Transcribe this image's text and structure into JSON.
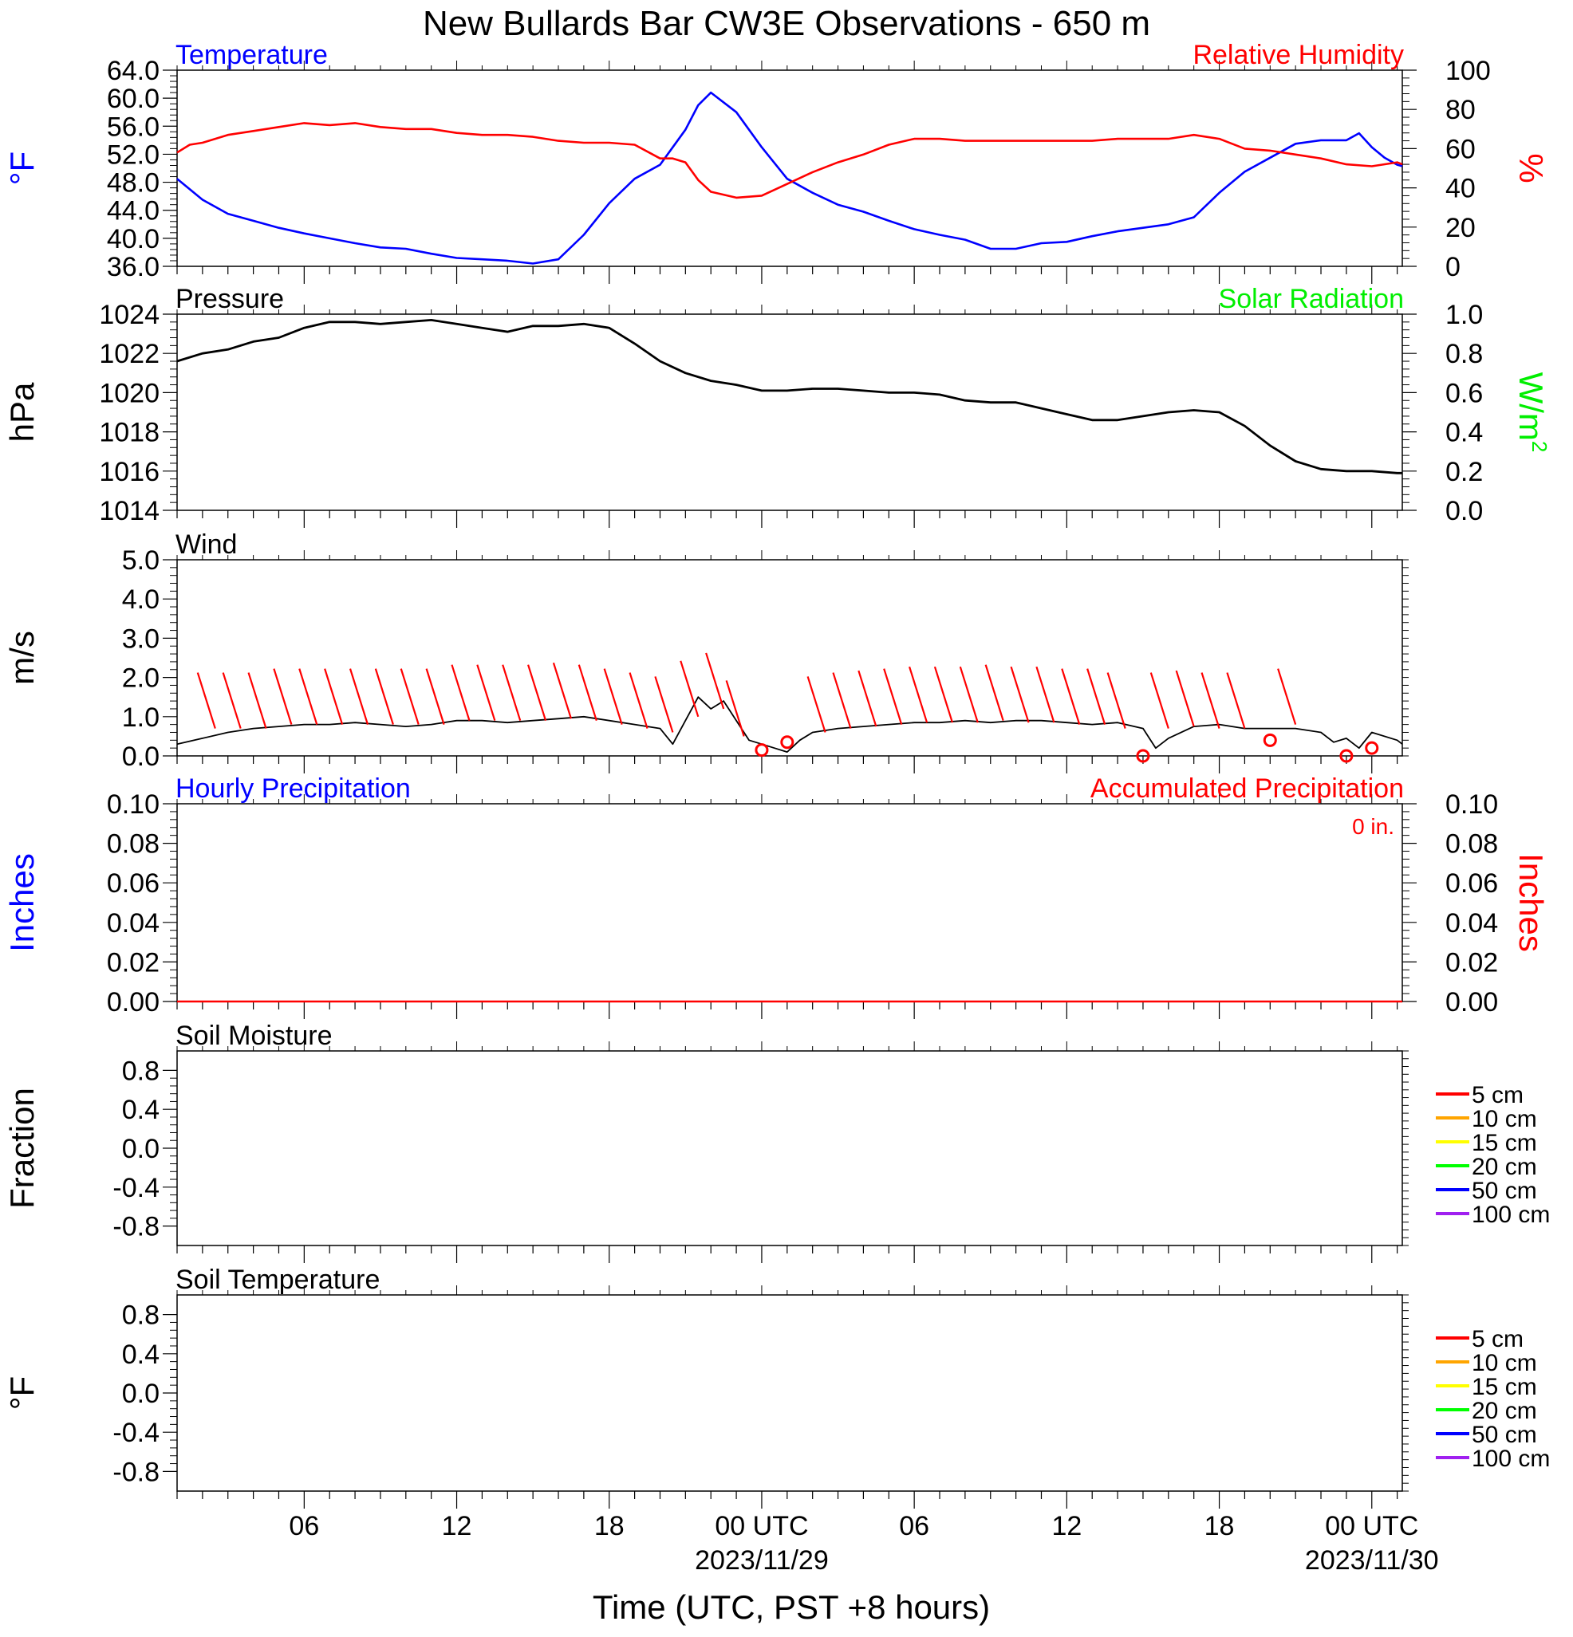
{
  "title": "New Bullards Bar CW3E Observations - 650 m",
  "colors": {
    "temperature": "#0000ff",
    "humidity": "#ff0000",
    "pressure": "#000000",
    "solar": "#00ee00",
    "wind": "#000000",
    "barb": "#ff0000",
    "hourly_precip": "#0000ff",
    "accum_precip": "#ff0000"
  },
  "x_axis": {
    "title": "Time (UTC, PST +8 hours)",
    "range_hours": [
      0,
      48.2
    ],
    "major_ticks": [
      {
        "hour": 5,
        "label": "06",
        "date": ""
      },
      {
        "hour": 11,
        "label": "12",
        "date": ""
      },
      {
        "hour": 17,
        "label": "18",
        "date": ""
      },
      {
        "hour": 23,
        "label": "00 UTC",
        "date": "2023/11/29"
      },
      {
        "hour": 29,
        "label": "06",
        "date": ""
      },
      {
        "hour": 35,
        "label": "12",
        "date": ""
      },
      {
        "hour": 41,
        "label": "18",
        "date": ""
      },
      {
        "hour": 47,
        "label": "00 UTC",
        "date": "2023/11/30"
      }
    ]
  },
  "chart_data": [
    {
      "type": "line",
      "panel": "temperature-humidity",
      "left_title": "Temperature",
      "right_title": "Relative Humidity",
      "ylabel_left": "°F",
      "ylabel_right": "%",
      "ylim_left": [
        36,
        64
      ],
      "ylim_right": [
        0,
        100
      ],
      "yticks_left": [
        "36.0",
        "40.0",
        "44.0",
        "48.0",
        "52.0",
        "56.0",
        "60.0",
        "64.0"
      ],
      "yticks_right": [
        "0",
        "20",
        "40",
        "60",
        "80",
        "100"
      ],
      "series": [
        {
          "key": "temperature",
          "axis": "left",
          "x": [
            0,
            1,
            2,
            3,
            4,
            5,
            6,
            7,
            8,
            9,
            10,
            11,
            12,
            13,
            14,
            15,
            16,
            17,
            18,
            19,
            20,
            20.5,
            21,
            22,
            23,
            24,
            25,
            26,
            27,
            28,
            29,
            30,
            31,
            32,
            33,
            34,
            35,
            36,
            37,
            38,
            39,
            40,
            41,
            42,
            43,
            44,
            45,
            46,
            46.5,
            47,
            47.5,
            48,
            48.2
          ],
          "y": [
            48.5,
            45.5,
            43.5,
            42.5,
            41.5,
            40.7,
            40.0,
            39.3,
            38.7,
            38.5,
            37.8,
            37.2,
            37.0,
            36.8,
            36.4,
            37.0,
            40.5,
            45.0,
            48.5,
            50.5,
            55.5,
            59.0,
            60.8,
            58.0,
            53.0,
            48.5,
            46.5,
            44.8,
            43.8,
            42.5,
            41.3,
            40.5,
            39.8,
            38.5,
            38.5,
            39.3,
            39.5,
            40.3,
            41.0,
            41.5,
            42.0,
            43.0,
            46.5,
            49.5,
            51.5,
            53.5,
            54.0,
            54.0,
            55.0,
            53.0,
            51.5,
            50.5,
            50.3
          ]
        },
        {
          "key": "humidity",
          "axis": "right",
          "x": [
            0,
            0.5,
            1,
            2,
            3,
            4,
            5,
            6,
            7,
            8,
            9,
            10,
            11,
            12,
            13,
            14,
            15,
            16,
            17,
            18,
            19,
            19.5,
            20,
            20.5,
            21,
            22,
            23,
            24,
            25,
            26,
            27,
            28,
            29,
            30,
            31,
            32,
            33,
            34,
            35,
            36,
            37,
            38,
            39,
            40,
            41,
            42,
            43,
            44,
            45,
            46,
            47,
            48,
            48.2
          ],
          "y": [
            58,
            62,
            63,
            67,
            69,
            71,
            73,
            72,
            73,
            71,
            70,
            70,
            68,
            67,
            67,
            66,
            64,
            63,
            63,
            62,
            55,
            55,
            53,
            44,
            38,
            35,
            36,
            42,
            48,
            53,
            57,
            62,
            65,
            65,
            64,
            64,
            64,
            64,
            64,
            64,
            65,
            65,
            65,
            67,
            65,
            60,
            59,
            57,
            55,
            52,
            51,
            53,
            52
          ]
        }
      ]
    },
    {
      "type": "line",
      "panel": "pressure-solar",
      "left_title": "Pressure",
      "right_title": "Solar Radiation",
      "ylabel_left": "hPa",
      "ylabel_right": "W/m",
      "ylabel_right_sup": "2",
      "ylim_left": [
        1014,
        1024
      ],
      "ylim_right": [
        0,
        1.0
      ],
      "yticks_left": [
        "1014",
        "1016",
        "1018",
        "1020",
        "1022",
        "1024"
      ],
      "yticks_right": [
        "0.0",
        "0.2",
        "0.4",
        "0.6",
        "0.8",
        "1.0"
      ],
      "series": [
        {
          "key": "pressure",
          "axis": "left",
          "x": [
            0,
            1,
            2,
            3,
            4,
            5,
            6,
            7,
            8,
            9,
            10,
            11,
            12,
            13,
            14,
            15,
            16,
            17,
            18,
            19,
            20,
            21,
            22,
            23,
            24,
            25,
            26,
            27,
            28,
            29,
            30,
            31,
            32,
            33,
            34,
            35,
            36,
            37,
            38,
            39,
            40,
            41,
            42,
            43,
            44,
            45,
            46,
            47,
            48,
            48.2
          ],
          "y": [
            1021.6,
            1022.0,
            1022.2,
            1022.6,
            1022.8,
            1023.3,
            1023.6,
            1023.6,
            1023.5,
            1023.6,
            1023.7,
            1023.5,
            1023.3,
            1023.1,
            1023.4,
            1023.4,
            1023.5,
            1023.3,
            1022.5,
            1021.6,
            1021.0,
            1020.6,
            1020.4,
            1020.1,
            1020.1,
            1020.2,
            1020.2,
            1020.1,
            1020.0,
            1020.0,
            1019.9,
            1019.6,
            1019.5,
            1019.5,
            1019.2,
            1018.9,
            1018.6,
            1018.6,
            1018.8,
            1019.0,
            1019.1,
            1019.0,
            1018.3,
            1017.3,
            1016.5,
            1016.1,
            1016.0,
            1016.0,
            1015.9,
            1015.9
          ]
        }
      ]
    },
    {
      "type": "line",
      "panel": "wind",
      "left_title": "Wind",
      "ylabel_left": "m/s",
      "ylim_left": [
        0,
        5.0
      ],
      "yticks_left": [
        "0.0",
        "1.0",
        "2.0",
        "3.0",
        "4.0",
        "5.0"
      ],
      "series": [
        {
          "key": "wind_speed",
          "axis": "left",
          "x": [
            0,
            1,
            2,
            3,
            4,
            5,
            6,
            7,
            8,
            9,
            10,
            11,
            12,
            13,
            14,
            15,
            16,
            17,
            18,
            19,
            19.5,
            20,
            20.5,
            21,
            21.5,
            22,
            22.5,
            23,
            23.5,
            24,
            24.5,
            25,
            26,
            27,
            28,
            29,
            30,
            31,
            32,
            33,
            34,
            35,
            36,
            37,
            38,
            38.5,
            39,
            40,
            41,
            42,
            43,
            44,
            45,
            45.5,
            46,
            46.5,
            47,
            48,
            48.2
          ],
          "y": [
            0.3,
            0.45,
            0.6,
            0.7,
            0.75,
            0.8,
            0.8,
            0.85,
            0.8,
            0.75,
            0.8,
            0.9,
            0.9,
            0.85,
            0.9,
            0.95,
            1.0,
            0.9,
            0.8,
            0.7,
            0.3,
            0.9,
            1.5,
            1.2,
            1.4,
            0.9,
            0.4,
            0.3,
            0.2,
            0.1,
            0.4,
            0.6,
            0.7,
            0.75,
            0.8,
            0.85,
            0.85,
            0.9,
            0.85,
            0.9,
            0.9,
            0.85,
            0.8,
            0.85,
            0.7,
            0.2,
            0.45,
            0.75,
            0.8,
            0.7,
            0.7,
            0.7,
            0.6,
            0.35,
            0.45,
            0.2,
            0.6,
            0.4,
            0.3
          ]
        }
      ],
      "barbs": [
        {
          "hour": 1.5,
          "speed": 0.7,
          "calm": false
        },
        {
          "hour": 2.5,
          "speed": 0.7,
          "calm": false
        },
        {
          "hour": 3.5,
          "speed": 0.7,
          "calm": false
        },
        {
          "hour": 4.5,
          "speed": 0.8,
          "calm": false
        },
        {
          "hour": 5.5,
          "speed": 0.8,
          "calm": false
        },
        {
          "hour": 6.5,
          "speed": 0.8,
          "calm": false
        },
        {
          "hour": 7.5,
          "speed": 0.8,
          "calm": false
        },
        {
          "hour": 8.5,
          "speed": 0.8,
          "calm": false
        },
        {
          "hour": 9.5,
          "speed": 0.8,
          "calm": false
        },
        {
          "hour": 10.5,
          "speed": 0.8,
          "calm": false
        },
        {
          "hour": 11.5,
          "speed": 0.9,
          "calm": false
        },
        {
          "hour": 12.5,
          "speed": 0.9,
          "calm": false
        },
        {
          "hour": 13.5,
          "speed": 0.9,
          "calm": false
        },
        {
          "hour": 14.5,
          "speed": 0.9,
          "calm": false
        },
        {
          "hour": 15.5,
          "speed": 0.95,
          "calm": false
        },
        {
          "hour": 16.5,
          "speed": 0.9,
          "calm": false
        },
        {
          "hour": 17.5,
          "speed": 0.8,
          "calm": false
        },
        {
          "hour": 18.5,
          "speed": 0.7,
          "calm": false
        },
        {
          "hour": 19.5,
          "speed": 0.6,
          "calm": false
        },
        {
          "hour": 20.5,
          "speed": 1.0,
          "calm": false
        },
        {
          "hour": 21.5,
          "speed": 1.2,
          "calm": false
        },
        {
          "hour": 22.3,
          "speed": 0.5,
          "calm": false
        },
        {
          "hour": 23.0,
          "speed": 0.15,
          "calm": true
        },
        {
          "hour": 24.0,
          "speed": 0.35,
          "calm": true
        },
        {
          "hour": 25.5,
          "speed": 0.6,
          "calm": false
        },
        {
          "hour": 26.5,
          "speed": 0.7,
          "calm": false
        },
        {
          "hour": 27.5,
          "speed": 0.75,
          "calm": false
        },
        {
          "hour": 28.5,
          "speed": 0.8,
          "calm": false
        },
        {
          "hour": 29.5,
          "speed": 0.85,
          "calm": false
        },
        {
          "hour": 30.5,
          "speed": 0.85,
          "calm": false
        },
        {
          "hour": 31.5,
          "speed": 0.85,
          "calm": false
        },
        {
          "hour": 32.5,
          "speed": 0.9,
          "calm": false
        },
        {
          "hour": 33.5,
          "speed": 0.85,
          "calm": false
        },
        {
          "hour": 34.5,
          "speed": 0.85,
          "calm": false
        },
        {
          "hour": 35.5,
          "speed": 0.8,
          "calm": false
        },
        {
          "hour": 36.5,
          "speed": 0.8,
          "calm": false
        },
        {
          "hour": 37.3,
          "speed": 0.7,
          "calm": false
        },
        {
          "hour": 38.0,
          "speed": 0.0,
          "calm": true
        },
        {
          "hour": 39.0,
          "speed": 0.7,
          "calm": false
        },
        {
          "hour": 40.0,
          "speed": 0.75,
          "calm": false
        },
        {
          "hour": 41.0,
          "speed": 0.7,
          "calm": false
        },
        {
          "hour": 42.0,
          "speed": 0.7,
          "calm": false
        },
        {
          "hour": 43.0,
          "speed": 0.4,
          "calm": true
        },
        {
          "hour": 44.0,
          "speed": 0.8,
          "calm": false
        },
        {
          "hour": 46.0,
          "speed": 0.0,
          "calm": true
        },
        {
          "hour": 47.0,
          "speed": 0.2,
          "calm": true
        }
      ]
    },
    {
      "type": "bar",
      "panel": "precipitation",
      "left_title": "Hourly Precipitation",
      "right_title": "Accumulated Precipitation",
      "annotation": "0 in.",
      "ylabel_left": "Inches",
      "ylabel_right": "Inches",
      "ylim_left": [
        0,
        0.1
      ],
      "ylim_right": [
        0,
        0.1
      ],
      "yticks_left": [
        "0.00",
        "0.02",
        "0.04",
        "0.06",
        "0.08",
        "0.10"
      ],
      "yticks_right": [
        "0.00",
        "0.02",
        "0.04",
        "0.06",
        "0.08",
        "0.10"
      ],
      "series": [
        {
          "key": "accumulated",
          "axis": "right",
          "x": [
            0,
            48.2
          ],
          "y": [
            0,
            0
          ]
        }
      ]
    },
    {
      "type": "line",
      "panel": "soil-moisture",
      "left_title": "Soil Moisture",
      "ylabel_left": "Fraction",
      "ylim_left": [
        -1.0,
        1.0
      ],
      "yticks_left": [
        "-0.8",
        "-0.4",
        "0.0",
        "0.4",
        "0.8"
      ],
      "series": [],
      "legend": [
        {
          "label": "5 cm",
          "color": "#ff0000"
        },
        {
          "label": "10 cm",
          "color": "#ffa500"
        },
        {
          "label": "15 cm",
          "color": "#ffff00"
        },
        {
          "label": "20 cm",
          "color": "#00ff00"
        },
        {
          "label": "50 cm",
          "color": "#0000ff"
        },
        {
          "label": "100 cm",
          "color": "#a020f0"
        }
      ]
    },
    {
      "type": "line",
      "panel": "soil-temperature",
      "left_title": "Soil Temperature",
      "ylabel_left": "°F",
      "ylim_left": [
        -1.0,
        1.0
      ],
      "yticks_left": [
        "-0.8",
        "-0.4",
        "0.0",
        "0.4",
        "0.8"
      ],
      "series": [],
      "legend": [
        {
          "label": "5 cm",
          "color": "#ff0000"
        },
        {
          "label": "10 cm",
          "color": "#ffa500"
        },
        {
          "label": "15 cm",
          "color": "#ffff00"
        },
        {
          "label": "20 cm",
          "color": "#00ff00"
        },
        {
          "label": "50 cm",
          "color": "#0000ff"
        },
        {
          "label": "100 cm",
          "color": "#a020f0"
        }
      ]
    }
  ]
}
